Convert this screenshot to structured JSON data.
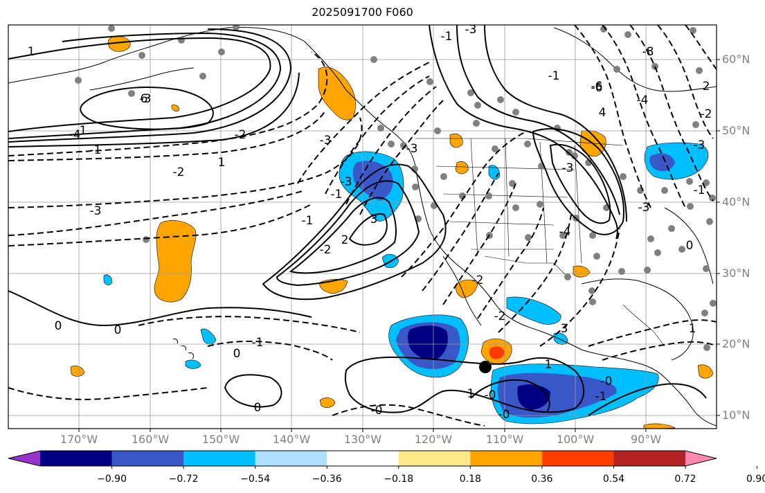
{
  "title": "2025091700 F060",
  "lat_labels": [
    "60°N",
    "50°N",
    "40°N",
    "30°N",
    "20°N",
    "10°N"
  ],
  "lon_labels": [
    "170°W",
    "160°W",
    "150°W",
    "140°W",
    "130°W",
    "120°W",
    "110°W",
    "100°W",
    "90°W"
  ],
  "colorbar": {
    "ticks": [
      "−0.90",
      "−0.72",
      "−0.54",
      "−0.36",
      "−0.18",
      "0.18",
      "0.36",
      "0.54",
      "0.72",
      "0.90"
    ],
    "colors": [
      "#9932cc",
      "#000080",
      "#3a57c8",
      "#00bfff",
      "#aee0ff",
      "#ffffff",
      "#fde88a",
      "#ffa500",
      "#ff3c00",
      "#b22222",
      "#ff88b0"
    ]
  },
  "contour_labels": [
    "1",
    "-3",
    "-2",
    "1",
    "1",
    "-1",
    "-2",
    "-3",
    "-4",
    "6",
    "-6",
    "-8",
    "-3",
    "-1",
    "-1",
    "-6",
    "-3",
    "-3",
    "4",
    "3",
    "-1",
    "-3",
    "-1",
    "-2",
    "-2",
    "-2",
    "2",
    "-3",
    "-3",
    "2",
    "1",
    "3",
    "-2",
    "-3",
    "0",
    "0",
    "0",
    "0",
    "-1",
    "-0",
    "-0",
    "1",
    "-0",
    "-1",
    "-0",
    "1",
    "0",
    "-1",
    "-4",
    "-4"
  ],
  "markers": {
    "center": "black-dot"
  }
}
